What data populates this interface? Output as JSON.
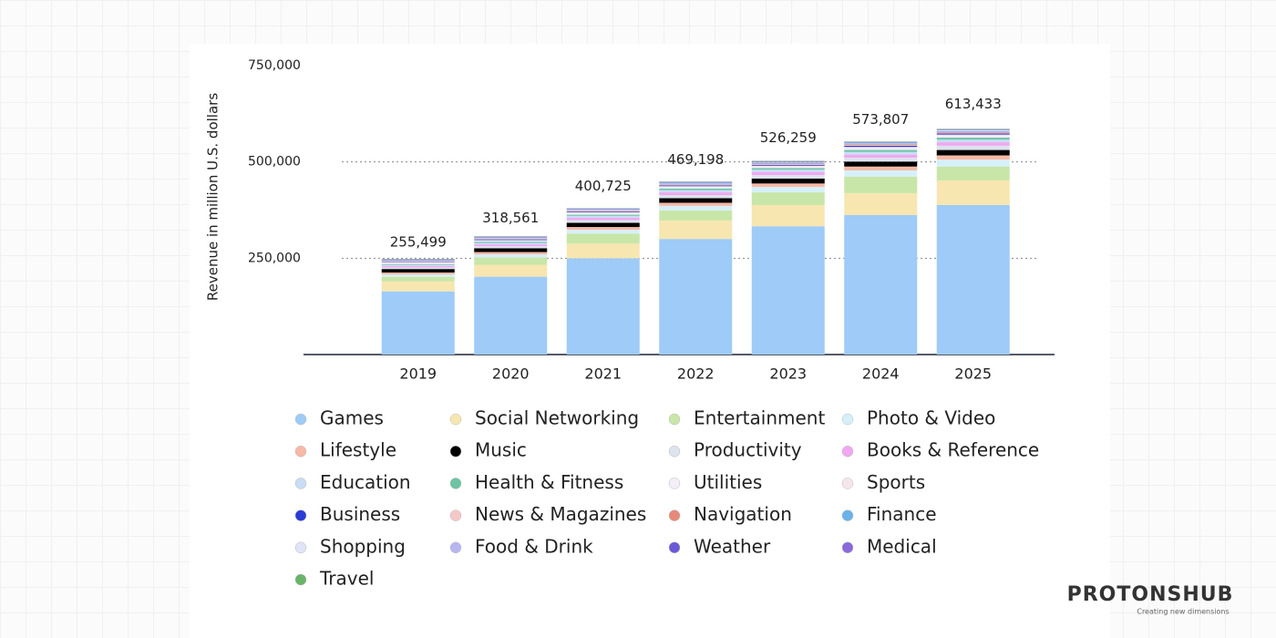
{
  "chart_data": {
    "type": "stacked_bar",
    "y_axis_label": "Revenue in million U.S. dollars",
    "categories": [
      "2019",
      "2020",
      "2021",
      "2022",
      "2023",
      "2024",
      "2025"
    ],
    "ylim": [
      0,
      750000
    ],
    "yticks": [
      {
        "value": 250000,
        "label": "250,000"
      },
      {
        "value": 500000,
        "label": "500,000"
      },
      {
        "value": 750000,
        "label": "750,000"
      }
    ],
    "grid": true,
    "totals": {
      "values": [
        255499,
        318561,
        400725,
        469198,
        526259,
        573807,
        613433
      ],
      "value_labels": [
        "255,499",
        "318,561",
        "400,725",
        "469,198",
        "526,259",
        "573,807",
        "613,433"
      ]
    },
    "series": [
      {
        "name": "Games",
        "color": "#9ecbf7",
        "values": [
          164000,
          202000,
          250000,
          300000,
          333000,
          362000,
          388000
        ]
      },
      {
        "name": "Social Networking",
        "color": "#f7e6b0",
        "values": [
          26000,
          31000,
          38000,
          48000,
          55000,
          57000,
          64000
        ]
      },
      {
        "name": "Entertainment",
        "color": "#c8e6a8",
        "values": [
          12000,
          19000,
          26000,
          26000,
          33000,
          43000,
          36000
        ]
      },
      {
        "name": "Photo & Video",
        "color": "#d6f0fa",
        "values": [
          6000,
          8000,
          10000,
          12000,
          14000,
          16000,
          18000
        ]
      },
      {
        "name": "Lifestyle",
        "color": "#f7b9a6",
        "values": [
          5000,
          6000,
          7000,
          8000,
          9000,
          10000,
          11000
        ]
      },
      {
        "name": "Music",
        "color": "#000000",
        "values": [
          9000,
          10000,
          11000,
          12000,
          13000,
          13000,
          14000
        ]
      },
      {
        "name": "Productivity",
        "color": "#dde4ee",
        "values": [
          4000,
          5000,
          7000,
          8000,
          9000,
          10000,
          11000
        ]
      },
      {
        "name": "Books & Reference",
        "color": "#f0a8f0",
        "values": [
          4000,
          5000,
          6000,
          7000,
          8000,
          8000,
          9000
        ]
      },
      {
        "name": "Education",
        "color": "#c9dcf5",
        "values": [
          3000,
          4000,
          5000,
          6000,
          6000,
          7000,
          7000
        ]
      },
      {
        "name": "Health & Fitness",
        "color": "#6cc4a4",
        "values": [
          2000,
          3000,
          3000,
          4000,
          4000,
          5000,
          5000
        ]
      },
      {
        "name": "Utilities",
        "color": "#f3eef8",
        "values": [
          2000,
          2000,
          3000,
          3000,
          3000,
          4000,
          4000
        ]
      },
      {
        "name": "Sports",
        "color": "#f5e6ec",
        "values": [
          2000,
          2000,
          3000,
          3000,
          3000,
          4000,
          4000
        ]
      },
      {
        "name": "Business",
        "color": "#2a3cd6",
        "values": [
          1000,
          2000,
          2000,
          2000,
          2000,
          3000,
          3000
        ]
      },
      {
        "name": "News & Magazines",
        "color": "#f5c8c8",
        "values": [
          1000,
          1000,
          2000,
          2000,
          2000,
          2000,
          2000
        ]
      },
      {
        "name": "Navigation",
        "color": "#e8887a",
        "values": [
          1000,
          1000,
          1000,
          1000,
          2000,
          2000,
          2000
        ]
      },
      {
        "name": "Finance",
        "color": "#6ab2ea",
        "values": [
          1000,
          1000,
          1000,
          2000,
          2000,
          2000,
          2000
        ]
      },
      {
        "name": "Shopping",
        "color": "#dfe4f7",
        "values": [
          1000,
          1000,
          1000,
          1000,
          1000,
          1000,
          2000
        ]
      },
      {
        "name": "Food & Drink",
        "color": "#b8b6f0",
        "values": [
          1000,
          1000,
          1000,
          1000,
          1000,
          1000,
          1000
        ]
      },
      {
        "name": "Weather",
        "color": "#6a5ad6",
        "values": [
          1000,
          1000,
          1000,
          1000,
          1000,
          1000,
          1000
        ]
      },
      {
        "name": "Medical",
        "color": "#8a6ad8",
        "values": [
          1000,
          1000,
          1000,
          1000,
          1000,
          1000,
          1000
        ]
      },
      {
        "name": "Travel",
        "color": "#6ab46a",
        "values": [
          1000,
          1000,
          1000,
          1000,
          1000,
          1000,
          1000
        ]
      }
    ]
  },
  "branding": {
    "logo": "PROTONSHUB",
    "tagline": "Creating new dimensions"
  }
}
